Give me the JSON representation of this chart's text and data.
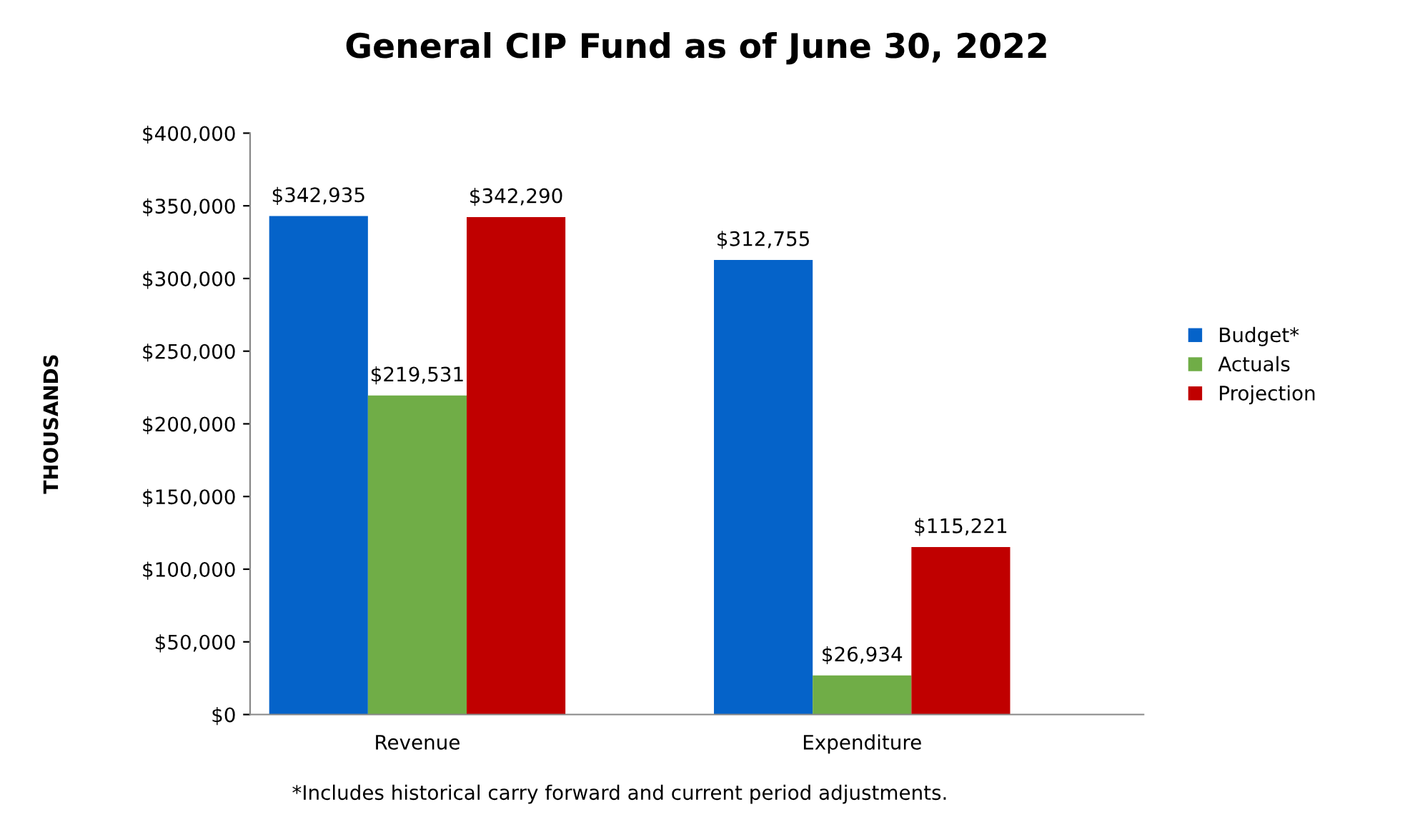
{
  "chart_data": {
    "type": "bar",
    "title": "General CIP Fund as of June 30, 2022",
    "ylabel": "THOUSANDS",
    "categories": [
      "Revenue",
      "Expenditure"
    ],
    "series": [
      {
        "name": "Budget*",
        "color": "#0563c9",
        "values": [
          342935,
          312755
        ],
        "value_labels": [
          "$342,935",
          "$312,755"
        ]
      },
      {
        "name": "Actuals",
        "color": "#70ad47",
        "values": [
          219531,
          26934
        ],
        "value_labels": [
          "$219,531",
          "$26,934"
        ]
      },
      {
        "name": "Projection",
        "color": "#c00000",
        "values": [
          342290,
          115221
        ],
        "value_labels": [
          "$342,290",
          "$115,221"
        ]
      }
    ],
    "ylim": [
      0,
      400000
    ],
    "yticks": [
      {
        "value": 0,
        "label": "$0"
      },
      {
        "value": 50000,
        "label": "$50,000"
      },
      {
        "value": 100000,
        "label": "$100,000"
      },
      {
        "value": 150000,
        "label": "$150,000"
      },
      {
        "value": 200000,
        "label": "$200,000"
      },
      {
        "value": 250000,
        "label": "$250,000"
      },
      {
        "value": 300000,
        "label": "$300,000"
      },
      {
        "value": 350000,
        "label": "$350,000"
      },
      {
        "value": 400000,
        "label": "$400,000"
      }
    ],
    "grid": false,
    "legend": "right",
    "annotations": [
      "*Includes historical carry forward and current period adjustments."
    ]
  }
}
